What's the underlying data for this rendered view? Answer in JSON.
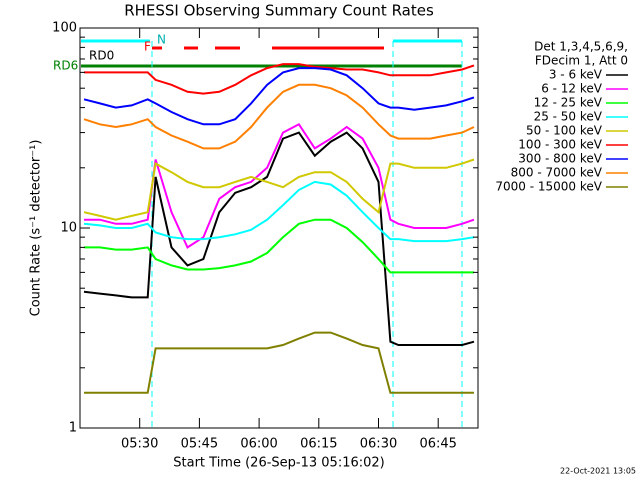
{
  "chart_data": {
    "type": "line",
    "title": "RHESSI Observing Summary Count Rates",
    "xlabel": "Start Time (26-Sep-13 05:16:02)",
    "ylabel": "Count Rate (s⁻¹ detector⁻¹)",
    "footer": "22-Oct-2021 13:05",
    "legend_header": [
      "Det 1,3,4,5,6,9,",
      "FDecim 1, Att 0"
    ],
    "annotations": {
      "rd0": "RD0",
      "rd6": "RD6",
      "f": "F",
      "n": "N"
    },
    "log_y": true,
    "xlim": [
      315,
      415
    ],
    "xticks": [
      {
        "value": 330,
        "label": "05:30"
      },
      {
        "value": 345,
        "label": "05:45"
      },
      {
        "value": 360,
        "label": "06:00"
      },
      {
        "value": 375,
        "label": "06:15"
      },
      {
        "value": 390,
        "label": "06:30"
      },
      {
        "value": 405,
        "label": "06:45"
      }
    ],
    "ylim": [
      1,
      100
    ],
    "yticks": [
      1,
      10,
      100
    ],
    "yminorticks": [
      2,
      3,
      4,
      5,
      6,
      7,
      8,
      9,
      20,
      30,
      40,
      50,
      60,
      70,
      80,
      90
    ],
    "x": [
      316,
      320,
      324,
      328,
      332,
      334,
      338,
      342,
      346,
      350,
      354,
      358,
      362,
      366,
      370,
      374,
      378,
      382,
      386,
      390,
      393,
      395,
      399,
      403,
      407,
      411,
      414
    ],
    "series": [
      {
        "name": "3 - 6 keV",
        "color": "#000000",
        "values": [
          4.8,
          4.7,
          4.6,
          4.5,
          4.5,
          18,
          8,
          6.5,
          7,
          12,
          15,
          16,
          18,
          28,
          30,
          23,
          27,
          30,
          25,
          17,
          2.7,
          2.6,
          2.6,
          2.6,
          2.6,
          2.6,
          2.7
        ]
      },
      {
        "name": "6 - 12 keV",
        "color": "#ff00ff",
        "values": [
          11,
          11,
          10.5,
          10.5,
          11,
          22,
          12,
          8,
          9,
          14,
          16,
          17,
          20,
          30,
          33,
          25,
          28,
          32,
          28,
          20,
          11,
          10.5,
          10,
          10,
          10,
          10.5,
          11
        ]
      },
      {
        "name": "12 - 25 keV",
        "color": "#00ff00",
        "values": [
          8,
          8,
          7.8,
          7.8,
          8,
          7,
          6.5,
          6.2,
          6.2,
          6.3,
          6.5,
          6.8,
          7.5,
          9,
          10.5,
          11,
          11,
          10,
          8.5,
          7,
          6,
          6,
          6,
          6,
          6,
          6,
          6
        ]
      },
      {
        "name": "25 - 50 keV",
        "color": "#00ffff",
        "values": [
          10.5,
          10.3,
          10,
          10,
          10.5,
          9.5,
          9,
          8.8,
          8.8,
          9,
          9.3,
          9.8,
          11,
          13,
          15.5,
          17,
          16.5,
          14.5,
          12,
          10,
          8.8,
          8.8,
          8.6,
          8.6,
          8.6,
          8.8,
          9
        ]
      },
      {
        "name": "50 - 100 keV",
        "color": "#d0c800",
        "values": [
          12,
          11.5,
          11,
          11.5,
          12,
          21,
          19,
          17,
          16,
          16,
          17,
          18,
          17,
          16,
          18,
          19,
          19,
          17,
          14,
          12,
          21,
          21,
          20,
          20,
          20,
          21,
          22
        ]
      },
      {
        "name": "100 - 300 keV",
        "color": "#ff0000",
        "values": [
          60,
          60,
          60,
          60,
          60,
          55,
          52,
          48,
          47,
          48,
          52,
          58,
          63,
          66,
          66,
          64,
          63,
          62,
          62,
          60,
          58,
          58,
          58,
          58,
          60,
          62,
          65
        ]
      },
      {
        "name": "300 - 800 keV",
        "color": "#0000ff",
        "values": [
          44,
          42,
          40,
          41,
          44,
          42,
          38,
          35,
          33,
          33,
          35,
          42,
          52,
          60,
          63,
          63,
          62,
          58,
          50,
          42,
          40,
          40,
          39,
          40,
          41,
          43,
          45
        ]
      },
      {
        "name": "800 - 7000 keV",
        "color": "#ff8000",
        "values": [
          35,
          33,
          32,
          33,
          35,
          32,
          29,
          27,
          25,
          25,
          27,
          32,
          40,
          48,
          52,
          52,
          50,
          46,
          40,
          33,
          29,
          28,
          28,
          28,
          29,
          30,
          32
        ]
      },
      {
        "name": "7000 - 15000 keV",
        "color": "#808000",
        "values": [
          1.5,
          1.5,
          1.5,
          1.5,
          1.5,
          2.5,
          2.5,
          2.5,
          2.5,
          2.5,
          2.5,
          2.5,
          2.5,
          2.6,
          2.8,
          3,
          3,
          2.8,
          2.6,
          2.5,
          1.5,
          1.5,
          1.5,
          1.5,
          1.5,
          1.5,
          1.5
        ]
      }
    ]
  }
}
